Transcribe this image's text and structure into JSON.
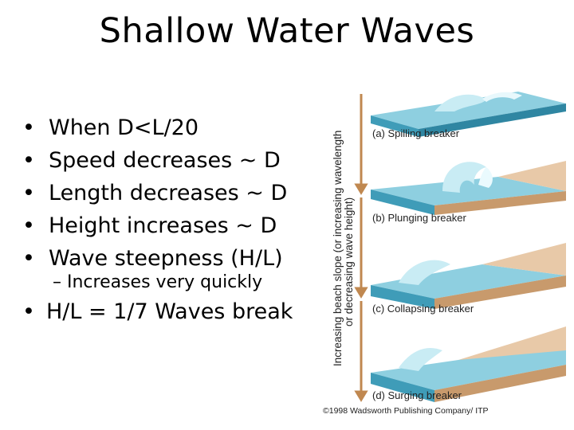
{
  "title": "Shallow Water Waves",
  "bullets": [
    "When D<L/20",
    "Speed decreases ~ D",
    "Length decreases ~ D",
    "Height increases ~ D",
    "Wave steepness (H/L)"
  ],
  "sub_bullet": "– Increases very quickly",
  "last_bullet": "H/L = 1/7 Waves break",
  "bullet_glyph": "•",
  "figure": {
    "axis_label_line1": "Increasing beach slope (or increasing wavelength",
    "axis_label_line2": "or decreasing wave height)",
    "panels": [
      "(a) Spilling breaker",
      "(b) Plunging breaker",
      "(c) Collapsing breaker",
      "(d) Surging breaker"
    ],
    "copyright": "©1998 Wadsworth Publishing Company/ ITP",
    "colors": {
      "water_top": "#8ecfe0",
      "water_side": "#3f9cb8",
      "sand_top": "#e8c9a8",
      "sand_side": "#c89a6c",
      "arrow": "#c08850"
    }
  }
}
